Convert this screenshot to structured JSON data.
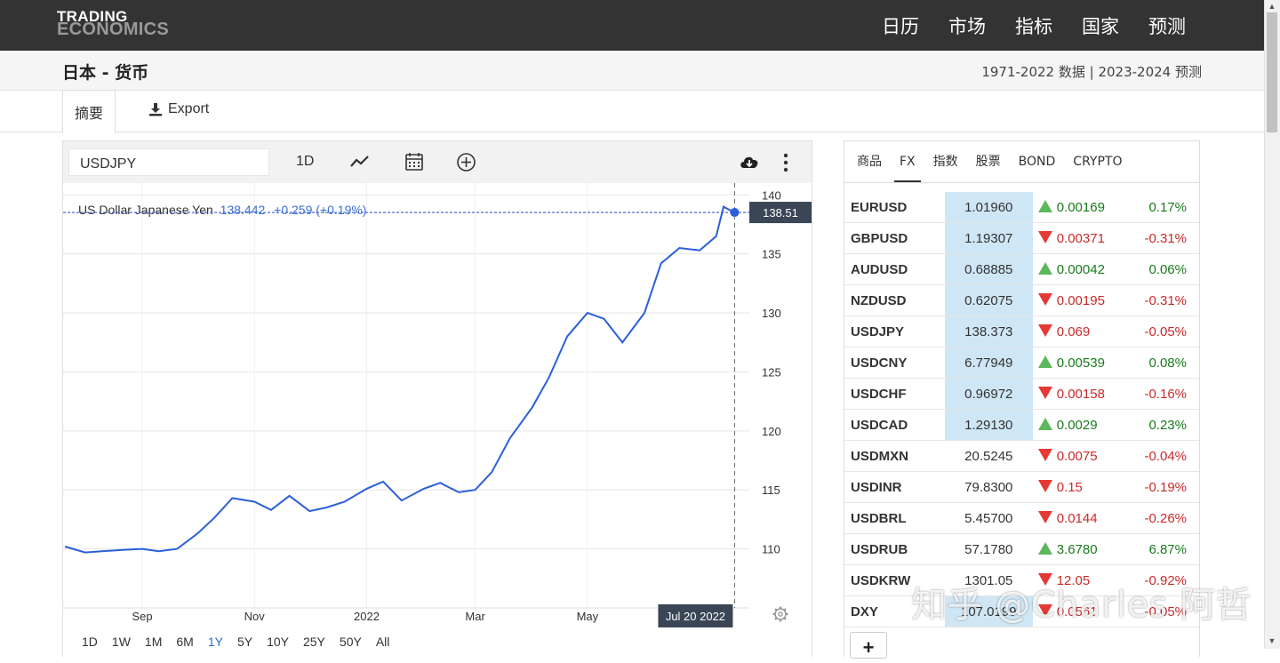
{
  "brand": {
    "line1": "TRADING",
    "line2": "ECONOMICS"
  },
  "topnav": [
    "日历",
    "市场",
    "指标",
    "国家",
    "预测"
  ],
  "page": {
    "title": "日本 - 货币",
    "range_info": "1971-2022 数据 | 2023-2024 预测"
  },
  "tabs": {
    "summary": "摘要",
    "export": "Export"
  },
  "toolbar": {
    "symbol": "USDJPY",
    "interval": "1D"
  },
  "chart_info": {
    "name": "US Dollar Japanese Yen",
    "price": "138.442",
    "change": "+0.259 (+0.19%)"
  },
  "chart_data": {
    "type": "line",
    "series_name": "USDJPY",
    "x": [
      "2021-07-21",
      "2021-08-01",
      "2021-08-10",
      "2021-08-20",
      "2021-09-01",
      "2021-09-10",
      "2021-09-20",
      "2021-10-01",
      "2021-10-10",
      "2021-10-20",
      "2021-11-01",
      "2021-11-10",
      "2021-11-20",
      "2021-12-01",
      "2021-12-10",
      "2021-12-20",
      "2022-01-01",
      "2022-01-10",
      "2022-01-20",
      "2022-02-01",
      "2022-02-10",
      "2022-02-20",
      "2022-03-01",
      "2022-03-10",
      "2022-03-20",
      "2022-04-01",
      "2022-04-10",
      "2022-04-20",
      "2022-05-01",
      "2022-05-10",
      "2022-05-20",
      "2022-06-01",
      "2022-06-10",
      "2022-06-20",
      "2022-07-01",
      "2022-07-10",
      "2022-07-14",
      "2022-07-20"
    ],
    "y": [
      110.2,
      109.7,
      109.8,
      109.9,
      110.0,
      109.8,
      110.0,
      111.3,
      112.6,
      114.3,
      114.0,
      113.3,
      114.5,
      113.2,
      113.5,
      114.0,
      115.1,
      115.7,
      114.1,
      115.1,
      115.6,
      114.8,
      115.0,
      116.5,
      119.4,
      122.0,
      124.5,
      128.0,
      130.0,
      129.5,
      127.5,
      130.0,
      134.2,
      135.5,
      135.3,
      136.5,
      139.0,
      138.5
    ],
    "ylim": [
      105,
      141
    ],
    "y_ticks": [
      "110",
      "115",
      "120",
      "125",
      "130",
      "135",
      "140"
    ],
    "x_ticks": [
      "Sep",
      "Nov",
      "2022",
      "Mar",
      "May"
    ],
    "current_value": "138.51",
    "crosshair_date": "Jul 20 2022"
  },
  "ranges": [
    "1D",
    "1W",
    "1M",
    "6M",
    "1Y",
    "5Y",
    "10Y",
    "25Y",
    "50Y",
    "All"
  ],
  "active_range": "1Y",
  "side_tabs": [
    "商品",
    "FX",
    "指数",
    "股票",
    "BOND",
    "CRYPTO"
  ],
  "active_side_tab": "FX",
  "quotes": [
    {
      "symbol": "EURUSD",
      "price": "1.01960",
      "change": "0.00169",
      "pct": "0.17%",
      "dir": "up",
      "highlight": true
    },
    {
      "symbol": "GBPUSD",
      "price": "1.19307",
      "change": "0.00371",
      "pct": "-0.31%",
      "dir": "down",
      "highlight": true
    },
    {
      "symbol": "AUDUSD",
      "price": "0.68885",
      "change": "0.00042",
      "pct": "0.06%",
      "dir": "up",
      "highlight": true
    },
    {
      "symbol": "NZDUSD",
      "price": "0.62075",
      "change": "0.00195",
      "pct": "-0.31%",
      "dir": "down",
      "highlight": true
    },
    {
      "symbol": "USDJPY",
      "price": "138.373",
      "change": "0.069",
      "pct": "-0.05%",
      "dir": "down",
      "highlight": true
    },
    {
      "symbol": "USDCNY",
      "price": "6.77949",
      "change": "0.00539",
      "pct": "0.08%",
      "dir": "up",
      "highlight": true
    },
    {
      "symbol": "USDCHF",
      "price": "0.96972",
      "change": "0.00158",
      "pct": "-0.16%",
      "dir": "down",
      "highlight": true
    },
    {
      "symbol": "USDCAD",
      "price": "1.29130",
      "change": "0.0029",
      "pct": "0.23%",
      "dir": "up",
      "highlight": true
    },
    {
      "symbol": "USDMXN",
      "price": "20.5245",
      "change": "0.0075",
      "pct": "-0.04%",
      "dir": "down",
      "highlight": false
    },
    {
      "symbol": "USDINR",
      "price": "79.8300",
      "change": "0.15",
      "pct": "-0.19%",
      "dir": "down",
      "highlight": false
    },
    {
      "symbol": "USDBRL",
      "price": "5.45700",
      "change": "0.0144",
      "pct": "-0.26%",
      "dir": "down",
      "highlight": false
    },
    {
      "symbol": "USDRUB",
      "price": "57.1780",
      "change": "3.6780",
      "pct": "6.87%",
      "dir": "up",
      "highlight": false
    },
    {
      "symbol": "USDKRW",
      "price": "1301.05",
      "change": "12.05",
      "pct": "-0.92%",
      "dir": "down",
      "highlight": false
    },
    {
      "symbol": "DXY",
      "price": "107.0199",
      "change": "0.0561",
      "pct": "-0.05%",
      "dir": "down",
      "highlight": true
    }
  ],
  "add_label": "+",
  "watermark": "知乎 @Charles 阿哲",
  "colors": {
    "topbar": "#333333",
    "line": "#2b5fd9",
    "highlight": "#cfe6f5",
    "up": "#1a7a1a",
    "down": "#c92a2a"
  }
}
